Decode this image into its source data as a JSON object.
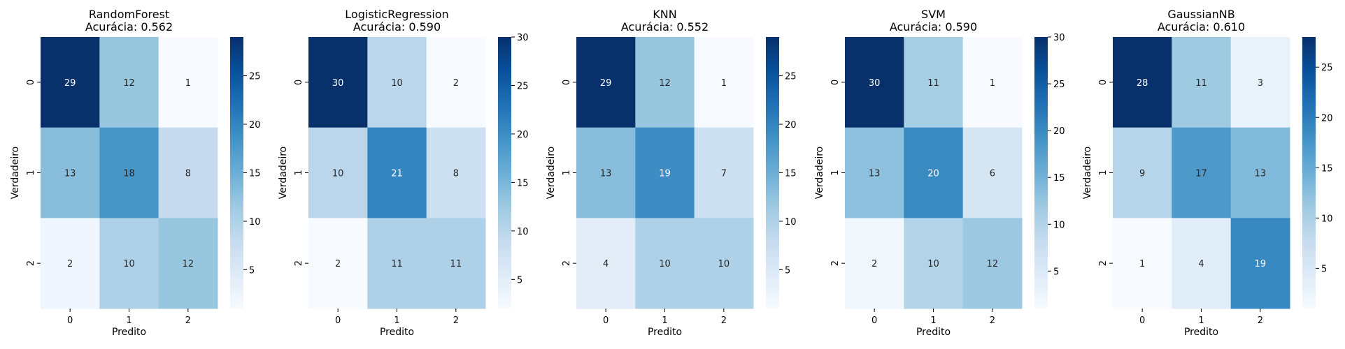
{
  "figure": {
    "colormap": "Blues"
  },
  "chart_data": [
    {
      "type": "heatmap",
      "title": "RandomForest",
      "subtitle": "Acurácia: 0.562",
      "xlabel": "Predito",
      "ylabel": "Verdadeiro",
      "x_categories": [
        "0",
        "1",
        "2"
      ],
      "y_categories": [
        "0",
        "1",
        "2"
      ],
      "matrix": [
        [
          29,
          12,
          1
        ],
        [
          13,
          18,
          8
        ],
        [
          2,
          10,
          12
        ]
      ],
      "colorbar": {
        "min": 1,
        "max": 29,
        "ticks": [
          5,
          10,
          15,
          20,
          25
        ]
      }
    },
    {
      "type": "heatmap",
      "title": "LogisticRegression",
      "subtitle": "Acurácia: 0.590",
      "xlabel": "Predito",
      "ylabel": "Verdadeiro",
      "x_categories": [
        "0",
        "1",
        "2"
      ],
      "y_categories": [
        "0",
        "1",
        "2"
      ],
      "matrix": [
        [
          30,
          10,
          2
        ],
        [
          10,
          21,
          8
        ],
        [
          2,
          11,
          11
        ]
      ],
      "colorbar": {
        "min": 2,
        "max": 30,
        "ticks": [
          5,
          10,
          15,
          20,
          25,
          30
        ]
      }
    },
    {
      "type": "heatmap",
      "title": "KNN",
      "subtitle": "Acurácia: 0.552",
      "xlabel": "Predito",
      "ylabel": "Verdadeiro",
      "x_categories": [
        "0",
        "1",
        "2"
      ],
      "y_categories": [
        "0",
        "1",
        "2"
      ],
      "matrix": [
        [
          29,
          12,
          1
        ],
        [
          13,
          19,
          7
        ],
        [
          4,
          10,
          10
        ]
      ],
      "colorbar": {
        "min": 1,
        "max": 29,
        "ticks": [
          5,
          10,
          15,
          20,
          25
        ]
      }
    },
    {
      "type": "heatmap",
      "title": "SVM",
      "subtitle": "Acurácia: 0.590",
      "xlabel": "Predito",
      "ylabel": "Verdadeiro",
      "x_categories": [
        "0",
        "1",
        "2"
      ],
      "y_categories": [
        "0",
        "1",
        "2"
      ],
      "matrix": [
        [
          30,
          11,
          1
        ],
        [
          13,
          20,
          6
        ],
        [
          2,
          10,
          12
        ]
      ],
      "colorbar": {
        "min": 1,
        "max": 30,
        "ticks": [
          5,
          10,
          15,
          20,
          25,
          30
        ]
      }
    },
    {
      "type": "heatmap",
      "title": "GaussianNB",
      "subtitle": "Acurácia: 0.610",
      "xlabel": "Predito",
      "ylabel": "Verdadeiro",
      "x_categories": [
        "0",
        "1",
        "2"
      ],
      "y_categories": [
        "0",
        "1",
        "2"
      ],
      "matrix": [
        [
          28,
          11,
          3
        ],
        [
          9,
          17,
          13
        ],
        [
          1,
          4,
          19
        ]
      ],
      "colorbar": {
        "min": 1,
        "max": 28,
        "ticks": [
          5,
          10,
          15,
          20,
          25
        ]
      }
    }
  ]
}
